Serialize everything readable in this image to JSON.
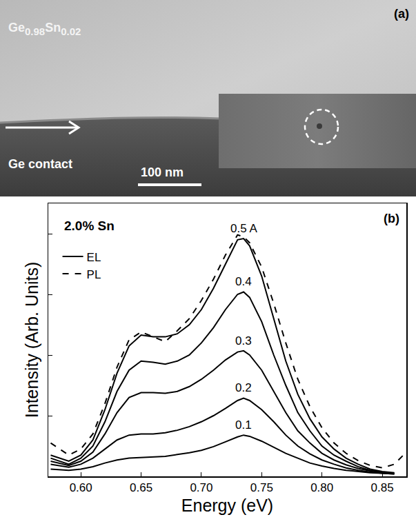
{
  "image_panel": {
    "label": "(a)",
    "layer": "Ge0.98Sn0.02",
    "contact": "Ge contact",
    "scale_bar": "100 nm"
  },
  "chart_data": {
    "type": "line",
    "label": "(b)",
    "annotation": "2.0% Sn",
    "x_label": "Energy (eV)",
    "y_label": "Intensity (Arb. Units)",
    "x": [
      0.575,
      0.59,
      0.6,
      0.61,
      0.62,
      0.63,
      0.64,
      0.65,
      0.66,
      0.67,
      0.68,
      0.69,
      0.7,
      0.71,
      0.72,
      0.73,
      0.735,
      0.74,
      0.75,
      0.76,
      0.77,
      0.78,
      0.79,
      0.8,
      0.81,
      0.82,
      0.83,
      0.84,
      0.85,
      0.86,
      0.87
    ],
    "series": [
      {
        "label": "0.5 A",
        "line_style": "solid",
        "values": [
          0.35,
          0.25,
          0.35,
          0.6,
          1.1,
          1.7,
          2.15,
          2.33,
          2.3,
          2.3,
          2.35,
          2.5,
          2.75,
          3.1,
          3.5,
          3.9,
          3.92,
          3.8,
          3.3,
          2.6,
          1.9,
          1.35,
          0.95,
          0.65,
          0.45,
          0.3,
          0.2,
          0.12,
          0.08,
          0.06,
          null
        ]
      },
      {
        "label": "0.4",
        "line_style": "solid",
        "values": [
          0.3,
          0.2,
          0.3,
          0.5,
          0.9,
          1.4,
          1.75,
          1.9,
          1.88,
          1.85,
          1.9,
          2.0,
          2.2,
          2.45,
          2.75,
          3.0,
          3.04,
          2.95,
          2.55,
          2.0,
          1.5,
          1.05,
          0.75,
          0.5,
          0.35,
          0.25,
          0.16,
          0.1,
          0.07,
          0.05,
          null
        ]
      },
      {
        "label": "0.3",
        "line_style": "solid",
        "values": [
          0.25,
          0.18,
          0.25,
          0.4,
          0.7,
          1.05,
          1.3,
          1.38,
          1.38,
          1.37,
          1.4,
          1.48,
          1.6,
          1.75,
          1.92,
          2.05,
          2.07,
          2.0,
          1.75,
          1.4,
          1.05,
          0.75,
          0.55,
          0.38,
          0.27,
          0.19,
          0.13,
          0.09,
          0.06,
          0.05,
          null
        ]
      },
      {
        "label": "0.2",
        "line_style": "solid",
        "values": [
          0.2,
          0.15,
          0.2,
          0.3,
          0.45,
          0.6,
          0.68,
          0.7,
          0.7,
          0.72,
          0.76,
          0.82,
          0.9,
          1.0,
          1.12,
          1.25,
          1.29,
          1.25,
          1.1,
          0.9,
          0.68,
          0.5,
          0.37,
          0.27,
          0.2,
          0.14,
          0.1,
          0.07,
          0.05,
          0.04,
          null
        ]
      },
      {
        "label": "0.1",
        "line_style": "solid",
        "values": [
          0.12,
          0.1,
          0.12,
          0.16,
          0.22,
          0.27,
          0.3,
          0.31,
          0.32,
          0.33,
          0.36,
          0.39,
          0.43,
          0.49,
          0.57,
          0.65,
          0.68,
          0.66,
          0.58,
          0.48,
          0.38,
          0.3,
          0.22,
          0.17,
          0.13,
          0.1,
          0.08,
          0.06,
          0.05,
          0.04,
          null
        ]
      },
      {
        "line_style": "dash",
        "values": [
          0.55,
          0.35,
          0.45,
          0.7,
          1.2,
          1.8,
          2.25,
          2.38,
          2.3,
          2.22,
          2.4,
          2.6,
          2.9,
          3.25,
          3.65,
          3.98,
          3.95,
          3.85,
          3.45,
          2.85,
          2.2,
          1.6,
          1.15,
          0.8,
          0.55,
          0.38,
          0.26,
          0.18,
          0.14,
          0.2,
          0.4
        ]
      }
    ],
    "legend_entries": [
      {
        "name": "EL",
        "line_style": "solid"
      },
      {
        "name": "PL",
        "line_style": "dash"
      }
    ],
    "color": "#000000",
    "legend": "upper left",
    "xlim": [
      0.573,
      0.87
    ],
    "xticks": [
      {
        "value": 0.6,
        "label": "0.60"
      },
      {
        "value": 0.65,
        "label": "0.65"
      },
      {
        "value": 0.7,
        "label": "0.70"
      },
      {
        "value": 0.75,
        "label": "0.75"
      },
      {
        "value": 0.8,
        "label": "0.80"
      },
      {
        "value": 0.85,
        "label": "0.85"
      }
    ],
    "ylim": [
      0,
      4.5
    ],
    "yticks": [
      0,
      1,
      2,
      3,
      4
    ],
    "tick_labels": "x",
    "grid": false
  }
}
